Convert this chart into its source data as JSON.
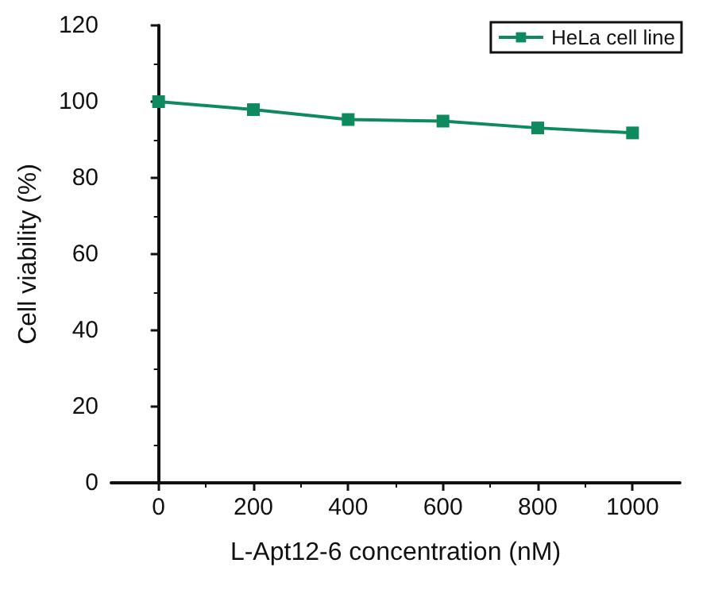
{
  "chart_data": {
    "type": "line",
    "xlabel": "L-Apt12-6 concentration (nM)",
    "ylabel": "Cell viability (%)",
    "x": [
      0,
      200,
      400,
      600,
      800,
      1000
    ],
    "series": [
      {
        "name": "HeLa cell line",
        "color": "#0f8a5f",
        "values": [
          100,
          97.9,
          95.3,
          94.9,
          93.1,
          91.8
        ]
      }
    ],
    "xlim": [
      -100,
      1100
    ],
    "xticks": [
      0,
      200,
      400,
      600,
      800,
      1000
    ],
    "ylim": [
      0,
      120
    ],
    "yticks": [
      0,
      20,
      40,
      60,
      80,
      100,
      120
    ],
    "grid": false,
    "legend": "top right",
    "marker": "square",
    "line_style": "solid"
  }
}
